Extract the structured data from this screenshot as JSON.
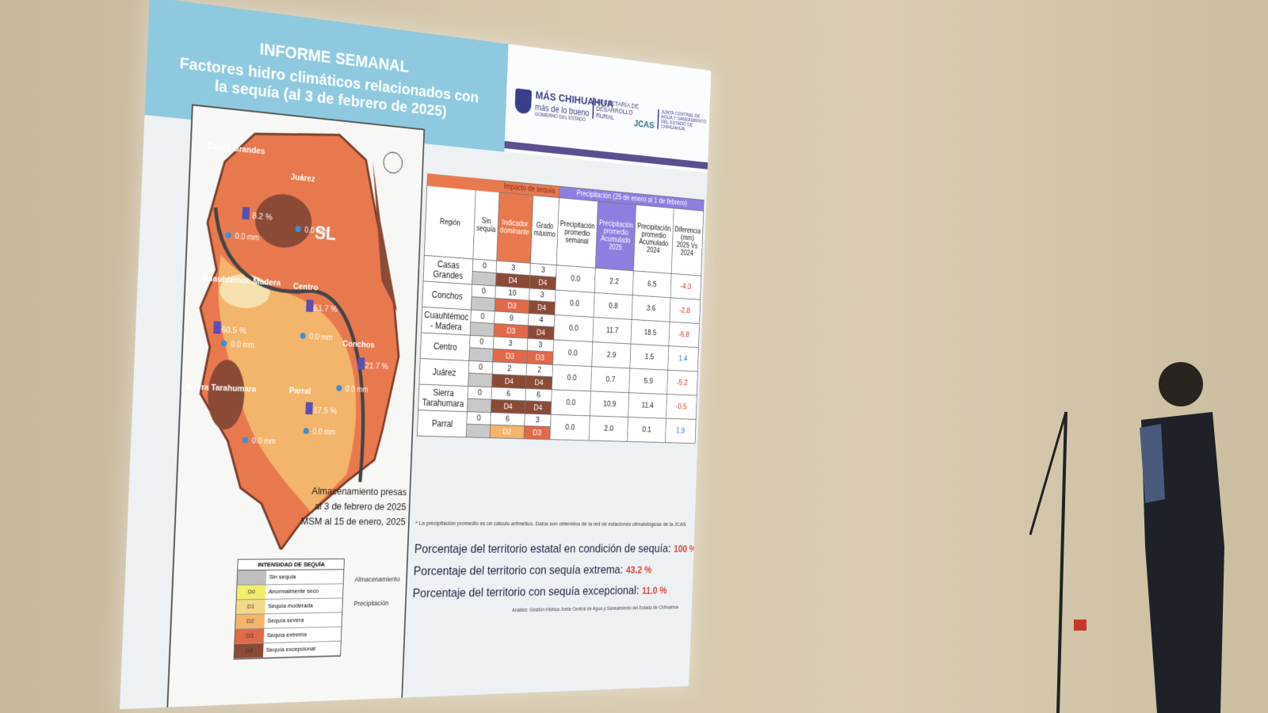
{
  "header": {
    "title": "INFORME SEMANAL",
    "subtitle_1": "Factores hidro climáticos relacionados con",
    "subtitle_2": "la sequía (al 3 de febrero de 2025)"
  },
  "logos": {
    "mas": "MÁS CHIHUAHUA",
    "mas_tag": "más de lo bueno",
    "gob": "GOBIERNO DEL ESTADO",
    "sdr": "SECRETARÍA DE DESARROLLO RURAL",
    "jcas": "JCAS",
    "jcas_full": "JUNTA CENTRAL DE AGUA Y SANEAMIENTO DEL ESTADO DE CHIHUAHUA"
  },
  "map": {
    "regions": [
      "Casas Grandes",
      "Juárez",
      "SL",
      "Cuauhtémoc-Madera",
      "Centro",
      "Conchos",
      "Sierra Tarahumara",
      "Parral"
    ],
    "storage": [
      "8.2 %",
      "51.7 %",
      "60.5 %",
      "21.7 %",
      "17.5 %"
    ],
    "precip": [
      "0.0 mm",
      "0.0 mm",
      "0.0 mm",
      "0.0 mm",
      "0.0 mm",
      "0.0 mm",
      "0.0 mm"
    ],
    "caption": [
      "Almacenamiento presas",
      "al 3 de febrero de 2025",
      "MSM al 15 de enero, 2025"
    ],
    "legend": {
      "title": "INTENSIDAD DE SEQUÍA",
      "items": [
        {
          "label": "Sin sequía"
        },
        {
          "code": "D0",
          "label": "Anormalmente seco"
        },
        {
          "code": "D1",
          "label": "Sequía moderada"
        },
        {
          "code": "D2",
          "label": "Sequía severa"
        },
        {
          "code": "D3",
          "label": "Sequía extrema"
        },
        {
          "code": "D4",
          "label": "Sequía excepcional"
        }
      ]
    },
    "symbols": [
      "Almacenamiento",
      "Precipitación"
    ]
  },
  "table": {
    "groups": [
      "Impacto de sequía",
      "Precipitación (25 de enero al 1 de febrero)"
    ],
    "columns": [
      "Región",
      "Sin sequía",
      "Indicador dominante",
      "Grado máximo",
      "Precipitación promedio semanal",
      "Precipitación promedio Acumulado 2025",
      "Precipitación promedio Acumulado 2024",
      "Diferencia (mm) 2025 Vs 2024"
    ],
    "rows": [
      {
        "region": "Casas Grandes",
        "sin": "0",
        "ind": "3",
        "ind_class": "D4",
        "max": "3",
        "max_class": "D4",
        "sem": "0.0",
        "a25": "2.2",
        "a24": "6.5",
        "diff": "-4.3"
      },
      {
        "region": "Conchos",
        "sin": "0",
        "ind": "10",
        "ind_class": "D3",
        "max": "3",
        "max_class": "D4",
        "sem": "0.0",
        "a25": "0.8",
        "a24": "3.6",
        "diff": "-2.8"
      },
      {
        "region": "Cuauhtémoc - Madera",
        "sin": "0",
        "ind": "9",
        "ind_class": "D3",
        "max": "4",
        "max_class": "D4",
        "sem": "0.0",
        "a25": "11.7",
        "a24": "18.5",
        "diff": "-6.8"
      },
      {
        "region": "Centro",
        "sin": "0",
        "ind": "3",
        "ind_class": "D3",
        "max": "3",
        "max_class": "D3",
        "sem": "0.0",
        "a25": "2.9",
        "a24": "1.5",
        "diff": "1.4"
      },
      {
        "region": "Juárez",
        "sin": "0",
        "ind": "2",
        "ind_class": "D4",
        "max": "2",
        "max_class": "D4",
        "sem": "0.0",
        "a25": "0.7",
        "a24": "5.9",
        "diff": "-5.2"
      },
      {
        "region": "Sierra Tarahumara",
        "sin": "0",
        "ind": "6",
        "ind_class": "D4",
        "max": "6",
        "max_class": "D4",
        "sem": "0.0",
        "a25": "10.9",
        "a24": "11.4",
        "diff": "-0.5"
      },
      {
        "region": "Parral",
        "sin": "0",
        "ind": "6",
        "ind_class": "D2",
        "max": "3",
        "max_class": "D3",
        "sem": "0.0",
        "a25": "2.0",
        "a24": "0.1",
        "diff": "1.9"
      }
    ]
  },
  "notes": {
    "footnote": "* La precipitación promedio es un cálculo aritmético. Datos son obtenidos de la red de estaciones climatológicas de la JCAS",
    "stats": [
      {
        "label": "Porcentaje del territorio estatal en condición de sequía:",
        "value": "100 %"
      },
      {
        "label": "Porcentaje del territorio con sequía extrema:",
        "value": "43.2 %"
      },
      {
        "label": "Porcentaje del territorio con sequía excepcional:",
        "value": "11.0 %"
      }
    ],
    "credit": "Análisis: Gestión Hídrica Junta Central de Agua y Saneamiento del Estado de Chihuahua"
  }
}
